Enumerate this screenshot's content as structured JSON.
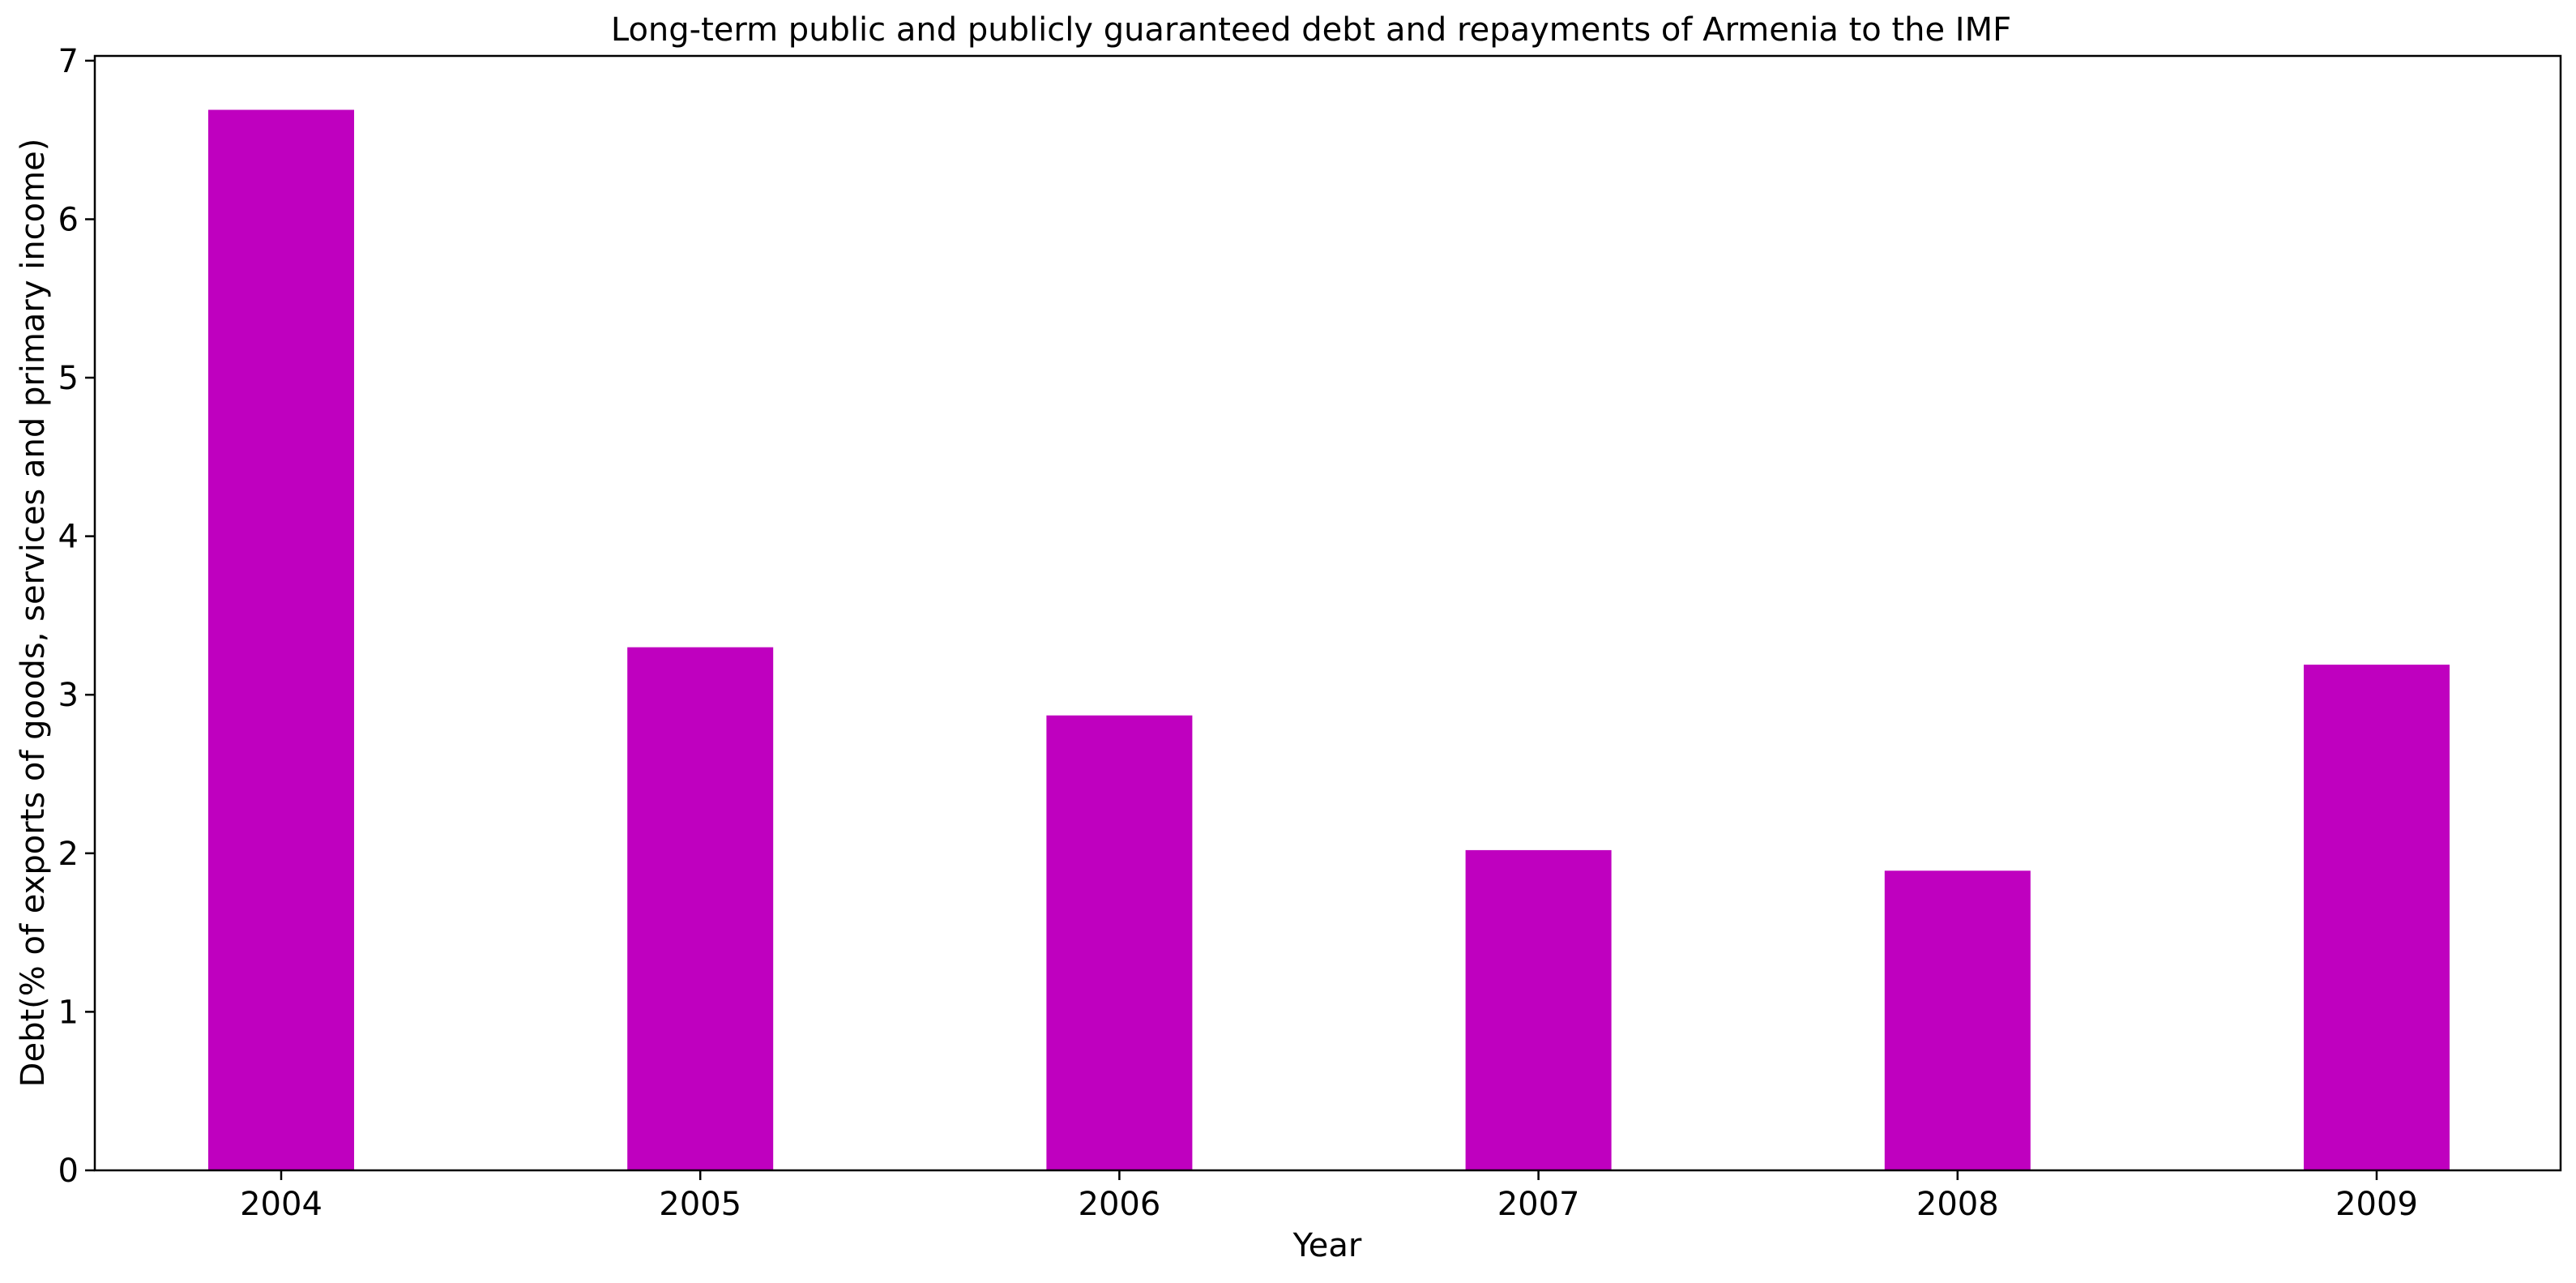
{
  "chart_data": {
    "type": "bar",
    "title": "Long-term public and publicly guaranteed debt and repayments of Armenia to the IMF",
    "xlabel": "Year",
    "ylabel": "Debt(% of exports of goods, services and primary income)",
    "categories": [
      "2004",
      "2005",
      "2006",
      "2007",
      "2008",
      "2009"
    ],
    "values": [
      6.69,
      3.3,
      2.87,
      2.02,
      1.89,
      3.19
    ],
    "ylim": [
      0,
      7.03
    ],
    "yticks": [
      0,
      1,
      2,
      3,
      4,
      5,
      6,
      7
    ],
    "grid": false,
    "legend": "none",
    "bar_color": "#bf00bf"
  }
}
